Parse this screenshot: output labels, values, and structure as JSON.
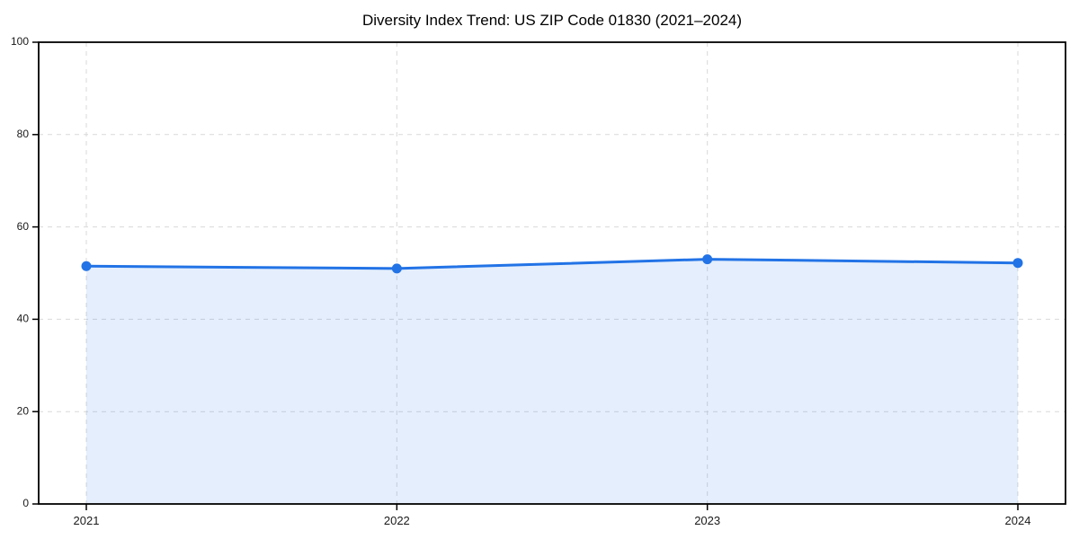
{
  "figure": {
    "background": "#ffffff"
  },
  "chart_data": {
    "type": "area",
    "title": "Diversity Index Trend: US ZIP Code 01830 (2021–2024)",
    "categories": [
      "2021",
      "2022",
      "2023",
      "2024"
    ],
    "series": [
      {
        "name": "Diversity Index",
        "values": [
          51.5,
          51.0,
          53.0,
          52.2
        ]
      }
    ],
    "xlabel": "",
    "ylabel": "",
    "ylim": [
      0,
      100
    ],
    "y_ticks": [
      0,
      20,
      40,
      60,
      80,
      100
    ],
    "grid": "both-dashed",
    "legend": "none",
    "colors": {
      "line": "#2273e6",
      "marker": "#2273e6",
      "fill": "rgba(34,115,230,0.12)",
      "grid": "#d9d9d9",
      "spine": "#000000",
      "tick_label": "#1a1a1a",
      "title": "#000000",
      "background": "#ffffff"
    }
  }
}
